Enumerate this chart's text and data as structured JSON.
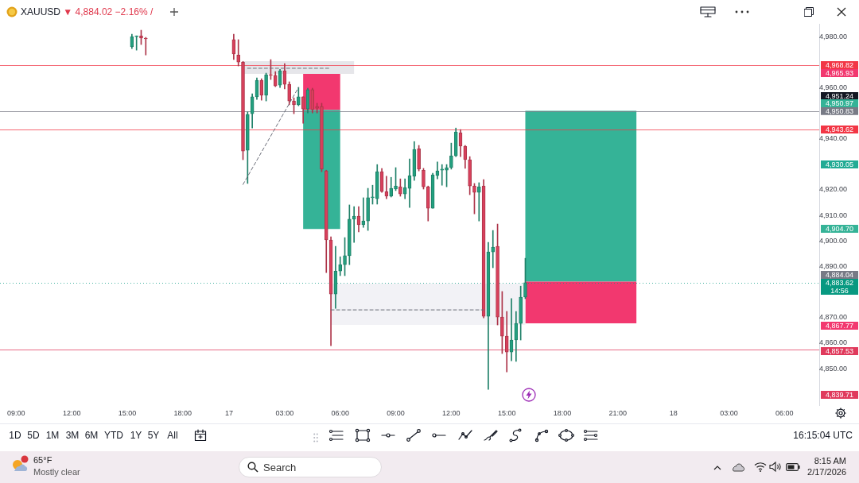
{
  "chart_data": {
    "type": "candlestick",
    "title": "XAUUSD",
    "subtitle": "▼ 4,884.02 −2.16% /",
    "categories": [
      null,
      null,
      null,
      "09:00",
      null,
      null,
      null,
      null,
      null,
      null,
      null,
      null,
      null,
      null,
      null,
      "12:00",
      null,
      null,
      null,
      null,
      null,
      null,
      null,
      null,
      null,
      null,
      null,
      "15:00",
      null,
      null,
      null,
      null,
      null,
      null,
      null,
      null,
      null,
      null,
      null,
      "18:00",
      null,
      null,
      null,
      null,
      null,
      null,
      null,
      null,
      null,
      "17",
      null,
      null,
      null,
      null,
      null,
      null,
      null,
      null,
      null,
      null,
      null,
      "03:00",
      null,
      null,
      null,
      null,
      null,
      null,
      null,
      null,
      null,
      null,
      null,
      "06:00",
      null,
      null,
      null,
      null,
      null,
      null,
      null,
      null,
      null,
      null,
      null,
      "09:00",
      null,
      null,
      null,
      null,
      null,
      null,
      null,
      null,
      null,
      null,
      null,
      "12:00",
      null,
      null,
      null,
      null,
      null,
      null,
      null,
      null,
      null,
      null,
      null,
      "15:00",
      null,
      null,
      null,
      null,
      null,
      null,
      null,
      null,
      null,
      null,
      null,
      "18:00",
      null,
      null,
      null,
      null,
      null,
      null,
      null,
      null,
      null,
      null,
      null,
      "21:00",
      null,
      null,
      null,
      null,
      null,
      null,
      null,
      null,
      null,
      null,
      null,
      "18",
      null,
      null,
      null,
      null,
      null,
      null,
      null,
      null,
      null,
      null,
      null,
      "03:00",
      null,
      null,
      null,
      null,
      null,
      null,
      null,
      null,
      null,
      null,
      null,
      "06:00",
      null,
      null,
      null,
      null,
      null,
      null,
      null
    ],
    "ohlc": [
      null,
      null,
      null,
      null,
      null,
      null,
      null,
      null,
      null,
      null,
      null,
      null,
      null,
      null,
      null,
      null,
      null,
      null,
      null,
      null,
      null,
      null,
      null,
      null,
      null,
      null,
      null,
      null,
      [
        4976.0,
        4980.9,
        4975.3,
        4980.0
      ],
      [
        4980.0,
        4980.3,
        4974.7,
        4980.3
      ],
      [
        4980.3,
        4982.5,
        4976.9,
        4979.4
      ],
      [
        4979.4,
        4979.7,
        4972.8,
        4979.1
      ],
      null,
      null,
      null,
      null,
      null,
      null,
      null,
      null,
      null,
      null,
      null,
      null,
      null,
      null,
      null,
      null,
      null,
      null,
      [
        4978.8,
        4980.9,
        4971.0,
        4973.2
      ],
      [
        4972.8,
        4978.8,
        4968.5,
        4970.0
      ],
      [
        4970.0,
        4970.3,
        4931.8,
        4935.2
      ],
      [
        4935.5,
        4950.5,
        4922.5,
        4949.5
      ],
      [
        4949.8,
        4957.6,
        4944.2,
        4956.4
      ],
      [
        4956.4,
        4963.8,
        4955.4,
        4962.9
      ],
      [
        4962.9,
        4963.5,
        4955.1,
        4957.0
      ],
      [
        4957.0,
        4965.7,
        4954.8,
        4965.1
      ],
      [
        4965.1,
        4971.0,
        4963.2,
        4964.8
      ],
      [
        4964.8,
        4966.3,
        4960.4,
        4960.7
      ],
      [
        4961.0,
        4967.2,
        4960.1,
        4966.6
      ],
      [
        4966.6,
        4969.4,
        4959.5,
        4961.3
      ],
      [
        4961.3,
        4962.3,
        4953.3,
        4954.8
      ],
      [
        4954.8,
        4956.0,
        4949.8,
        4953.3
      ],
      [
        4953.3,
        4960.1,
        4952.9,
        4956.4
      ],
      [
        4956.4,
        4956.4,
        4946.1,
        4951.7
      ],
      [
        4951.7,
        4959.8,
        4950.1,
        4959.2
      ],
      [
        4959.2,
        4959.8,
        4950.1,
        4951.4
      ],
      [
        4952.6,
        4953.9,
        4950.1,
        4952.0
      ],
      [
        4952.6,
        4953.9,
        4927.1,
        4928.1
      ],
      [
        4927.4,
        4927.7,
        4887.6,
        4900.4
      ],
      [
        4900.4,
        4901.6,
        4859.0,
        4879.2
      ],
      [
        4879.2,
        4897.9,
        4873.6,
        4888.2
      ],
      [
        4888.2,
        4893.8,
        4886.4,
        4890.7
      ],
      [
        4890.7,
        4901.3,
        4886.4,
        4894.2
      ],
      [
        4894.2,
        4914.1,
        4890.7,
        4908.5
      ],
      [
        4908.5,
        4913.4,
        4899.4,
        4909.7
      ],
      [
        4909.7,
        4913.4,
        4903.5,
        4906.3
      ],
      [
        4906.3,
        4916.9,
        4905.3,
        4907.8
      ],
      [
        4907.8,
        4920.6,
        4904.1,
        4916.9
      ],
      [
        4916.9,
        4921.8,
        4914.4,
        4917.2
      ],
      [
        4916.5,
        4929.9,
        4914.4,
        4927.1
      ],
      [
        4927.1,
        4928.4,
        4919.0,
        4919.3
      ],
      [
        4919.3,
        4925.3,
        4916.5,
        4917.5
      ],
      [
        4917.5,
        4924.9,
        4917.2,
        4920.6
      ],
      [
        4920.3,
        4928.7,
        4919.7,
        4921.5
      ],
      [
        4921.2,
        4924.3,
        4917.5,
        4918.4
      ],
      [
        4918.4,
        4924.3,
        4916.5,
        4920.9
      ],
      [
        4920.6,
        4932.1,
        4913.1,
        4925.6
      ],
      [
        4925.3,
        4938.9,
        4923.7,
        4935.8
      ],
      [
        4936.1,
        4937.4,
        4927.4,
        4928.1
      ],
      [
        4927.7,
        4928.4,
        4920.3,
        4921.2
      ],
      [
        4921.2,
        4921.5,
        4907.8,
        4912.8
      ],
      [
        4912.8,
        4926.5,
        4912.8,
        4925.9
      ],
      [
        4925.6,
        4930.9,
        4924.3,
        4927.4
      ],
      [
        4927.7,
        4929.9,
        4921.8,
        4928.1
      ],
      [
        4927.7,
        4929.9,
        4921.2,
        4928.7
      ],
      [
        4928.7,
        4938.3,
        4928.1,
        4933.3
      ],
      [
        4933.3,
        4944.2,
        4933.0,
        4942.7
      ],
      [
        4942.4,
        4943.6,
        4933.0,
        4937.1
      ],
      [
        4937.1,
        4937.4,
        4928.4,
        4931.8
      ],
      [
        4931.8,
        4933.0,
        4918.1,
        4921.5
      ],
      [
        4921.5,
        4922.5,
        4910.6,
        4919.0
      ],
      [
        4919.0,
        4922.8,
        4907.8,
        4921.2
      ],
      [
        4921.5,
        4924.0,
        4869.9,
        4870.5
      ],
      [
        4870.5,
        4899.4,
        4841.9,
        4895.7
      ],
      [
        4895.7,
        4904.1,
        4889.5,
        4897.6
      ],
      [
        4897.9,
        4906.6,
        4867.1,
        4870.2
      ],
      [
        4870.2,
        4880.2,
        4855.9,
        4862.7
      ],
      [
        4862.7,
        4872.4,
        4848.7,
        4856.5
      ],
      [
        4856.5,
        4877.4,
        4853.1,
        4861.2
      ],
      [
        4861.2,
        4872.4,
        4852.8,
        4867.7
      ],
      [
        4867.7,
        4882.3,
        4861.2,
        4878.0
      ],
      [
        4878.0,
        4893.2,
        4877.4,
        4883.62
      ],
      null,
      null,
      null,
      null,
      null,
      null,
      null,
      null,
      null,
      null,
      null,
      null,
      null,
      null,
      null,
      null,
      null,
      null,
      null,
      null,
      null,
      null,
      null,
      null,
      null,
      null,
      null,
      null,
      null,
      null,
      null,
      null,
      null,
      null,
      null,
      null,
      null,
      null,
      null,
      null,
      null,
      null,
      null,
      null,
      null,
      null,
      null,
      null,
      null,
      null,
      null,
      null,
      null,
      null,
      null,
      null,
      null,
      null,
      null,
      null,
      null,
      null,
      null
    ],
    "series": [
      {
        "type": "line",
        "color": "#6a6d78",
        "line_style": "dashed",
        "values": [
          null,
          null,
          null,
          null,
          null,
          null,
          null,
          null,
          null,
          null,
          null,
          null,
          null,
          null,
          null,
          null,
          null,
          null,
          null,
          null,
          null,
          null,
          null,
          null,
          null,
          null,
          null,
          null,
          null,
          null,
          null,
          null,
          null,
          null,
          null,
          null,
          null,
          null,
          null,
          null,
          null,
          null,
          null,
          null,
          null,
          null,
          null,
          null,
          null,
          null,
          null,
          null,
          4922.1,
          null,
          null,
          null,
          null,
          null,
          null,
          null,
          null,
          null,
          null,
          null,
          4960.1,
          null,
          null,
          null,
          null,
          null,
          null,
          null,
          null,
          null,
          null,
          null,
          null,
          null,
          null,
          null,
          null,
          null,
          null,
          null,
          null,
          null,
          null,
          null,
          null,
          null,
          null,
          null,
          null,
          null,
          null,
          null,
          null,
          null,
          null,
          null,
          null,
          null,
          null,
          null,
          null,
          null,
          null,
          null,
          null,
          null,
          null,
          null,
          null,
          null,
          null,
          null,
          null,
          null,
          null,
          null,
          null,
          null,
          null,
          null,
          null,
          null,
          null,
          null,
          null,
          null,
          null,
          null,
          null,
          null,
          null,
          null,
          null,
          null,
          null,
          null,
          null,
          null,
          null,
          null,
          null,
          null,
          null,
          null,
          null,
          null,
          null,
          null,
          null,
          null,
          null,
          null,
          null,
          null,
          null,
          null,
          null,
          null,
          null,
          null,
          null,
          null,
          null,
          null,
          null,
          null,
          null,
          null,
          null,
          null,
          null,
          null,
          null
        ]
      },
      {
        "type": "line",
        "color": "#6a6d78",
        "line_style": "dashed",
        "values": [
          null,
          null,
          null,
          null,
          null,
          null,
          null,
          null,
          null,
          null,
          null,
          null,
          null,
          null,
          null,
          null,
          null,
          null,
          null,
          null,
          null,
          null,
          null,
          null,
          null,
          null,
          null,
          null,
          null,
          null,
          null,
          null,
          null,
          null,
          null,
          null,
          null,
          null,
          null,
          null,
          null,
          null,
          null,
          null,
          null,
          null,
          null,
          null,
          null,
          null,
          null,
          null,
          null,
          4967.6,
          null,
          null,
          null,
          null,
          null,
          null,
          null,
          null,
          null,
          null,
          null,
          null,
          null,
          null,
          null,
          null,
          null,
          4967.6,
          null,
          null,
          null,
          null,
          null,
          null,
          null,
          null,
          null,
          null,
          null,
          null,
          null,
          null,
          null,
          null,
          null,
          null,
          null,
          null,
          null,
          null,
          null,
          null,
          null,
          null,
          null,
          null,
          null,
          null,
          null,
          null,
          null,
          null,
          null,
          null,
          null,
          null,
          null,
          null,
          null,
          null,
          null,
          null,
          null,
          null,
          null,
          null,
          null,
          null,
          null,
          null,
          null,
          null,
          null,
          null,
          null,
          null,
          null,
          null,
          null,
          null,
          null,
          null,
          null,
          null,
          null,
          null,
          null,
          null,
          null,
          null,
          null,
          null,
          null,
          null,
          null,
          null,
          null,
          null,
          null,
          null,
          null,
          null,
          null,
          null,
          null,
          null,
          null,
          null,
          null,
          null,
          null,
          null,
          null,
          null,
          null,
          null,
          null,
          null,
          null,
          null,
          null,
          null,
          null
        ]
      },
      {
        "type": "line",
        "color": "#6a6d78",
        "line_style": "dashed",
        "values": [
          null,
          null,
          null,
          null,
          null,
          null,
          null,
          null,
          null,
          null,
          null,
          null,
          null,
          null,
          null,
          null,
          null,
          null,
          null,
          null,
          null,
          null,
          null,
          null,
          null,
          null,
          null,
          null,
          null,
          null,
          null,
          null,
          null,
          null,
          null,
          null,
          null,
          null,
          null,
          null,
          null,
          null,
          null,
          null,
          null,
          null,
          null,
          null,
          null,
          null,
          null,
          null,
          null,
          null,
          null,
          null,
          null,
          null,
          null,
          null,
          null,
          null,
          null,
          null,
          null,
          null,
          null,
          null,
          null,
          null,
          null,
          4873.0,
          null,
          null,
          null,
          null,
          null,
          null,
          null,
          null,
          null,
          null,
          null,
          null,
          null,
          null,
          null,
          null,
          null,
          null,
          null,
          null,
          null,
          null,
          null,
          null,
          null,
          null,
          null,
          null,
          null,
          null,
          null,
          null,
          4873.0,
          null,
          null,
          null,
          null,
          null,
          null,
          null,
          null,
          null,
          null,
          null,
          null,
          null,
          null,
          null,
          null,
          null,
          null,
          null,
          null,
          null,
          null,
          null,
          null,
          null,
          null,
          null,
          null,
          null,
          null,
          null,
          null,
          null,
          null,
          null,
          null,
          null,
          null,
          null,
          null,
          null,
          null,
          null,
          null,
          null,
          null,
          null,
          null,
          null,
          null,
          null,
          null,
          null,
          null,
          null,
          null,
          null,
          null,
          null,
          null,
          null,
          null,
          null,
          null,
          null,
          null,
          null,
          null,
          null,
          null,
          null,
          null
        ]
      }
    ],
    "ylim": [
      4835.7,
      4985.0
    ],
    "yticks": [
      {
        "value": 4850,
        "label": "4,850.00"
      },
      {
        "value": 4860,
        "label": "4,860.00"
      },
      {
        "value": 4870,
        "label": "4,870.00"
      },
      {
        "value": 4890,
        "label": "4,890.00"
      },
      {
        "value": 4900,
        "label": "4,900.00"
      },
      {
        "value": 4910,
        "label": "4,910.00"
      },
      {
        "value": 4920,
        "label": "4,920.00"
      },
      {
        "value": 4940,
        "label": "4,940.00"
      },
      {
        "value": 4960,
        "label": "4,960.00"
      },
      {
        "value": 4980,
        "label": "4,980.00"
      }
    ],
    "ref_lines": [
      {
        "axis": "y",
        "value": 4968.82,
        "label": "4,968.82",
        "color": "#f23645"
      },
      {
        "axis": "y",
        "value": 4950.83,
        "label": "4,950.83",
        "color": "#787b86"
      },
      {
        "axis": "y",
        "value": 4943.62,
        "label": "4,943.62",
        "color": "#f23645"
      },
      {
        "axis": "y",
        "value": 4857.53,
        "label": "4,857.53",
        "color": "#e03a5c"
      },
      {
        "axis": "y",
        "value": 4883.62,
        "label": "4,883.62",
        "color": "#089981",
        "line_style": "dotted"
      }
    ],
    "bands": [
      {
        "axis": "y",
        "from": 4965.93,
        "to": 4951.24,
        "color": "#f2386f"
      },
      {
        "axis": "y",
        "from": 4904.7,
        "to": 4951.24,
        "color": "#35b397"
      },
      {
        "axis": "y",
        "from": 4950.97,
        "to": 4884.04,
        "color": "#35b397"
      },
      {
        "axis": "y",
        "from": 4867.77,
        "to": 4884.04,
        "color": "#f2386f"
      },
      {
        "axis": "y",
        "from": 4965.4,
        "to": 4970.4,
        "color": "#e6e6ea"
      },
      {
        "axis": "y",
        "from": 4867.1,
        "to": 4883.3,
        "color": "#f2f2f6"
      }
    ],
    "annotations": [
      "1D",
      "5D",
      "1M",
      "3M",
      "6M",
      "YTD",
      "1Y",
      "5Y",
      "All",
      "16:15:04 UTC",
      "14:56",
      "65°F",
      "Mostly clear",
      "Search",
      "8:15 AM",
      "2/17/2026",
      "4,965.93",
      "4,951.24",
      "4,950.97",
      "4,930.05",
      "4,904.70",
      "4,884.04",
      "4,867.77",
      "4,839.71"
    ]
  }
}
